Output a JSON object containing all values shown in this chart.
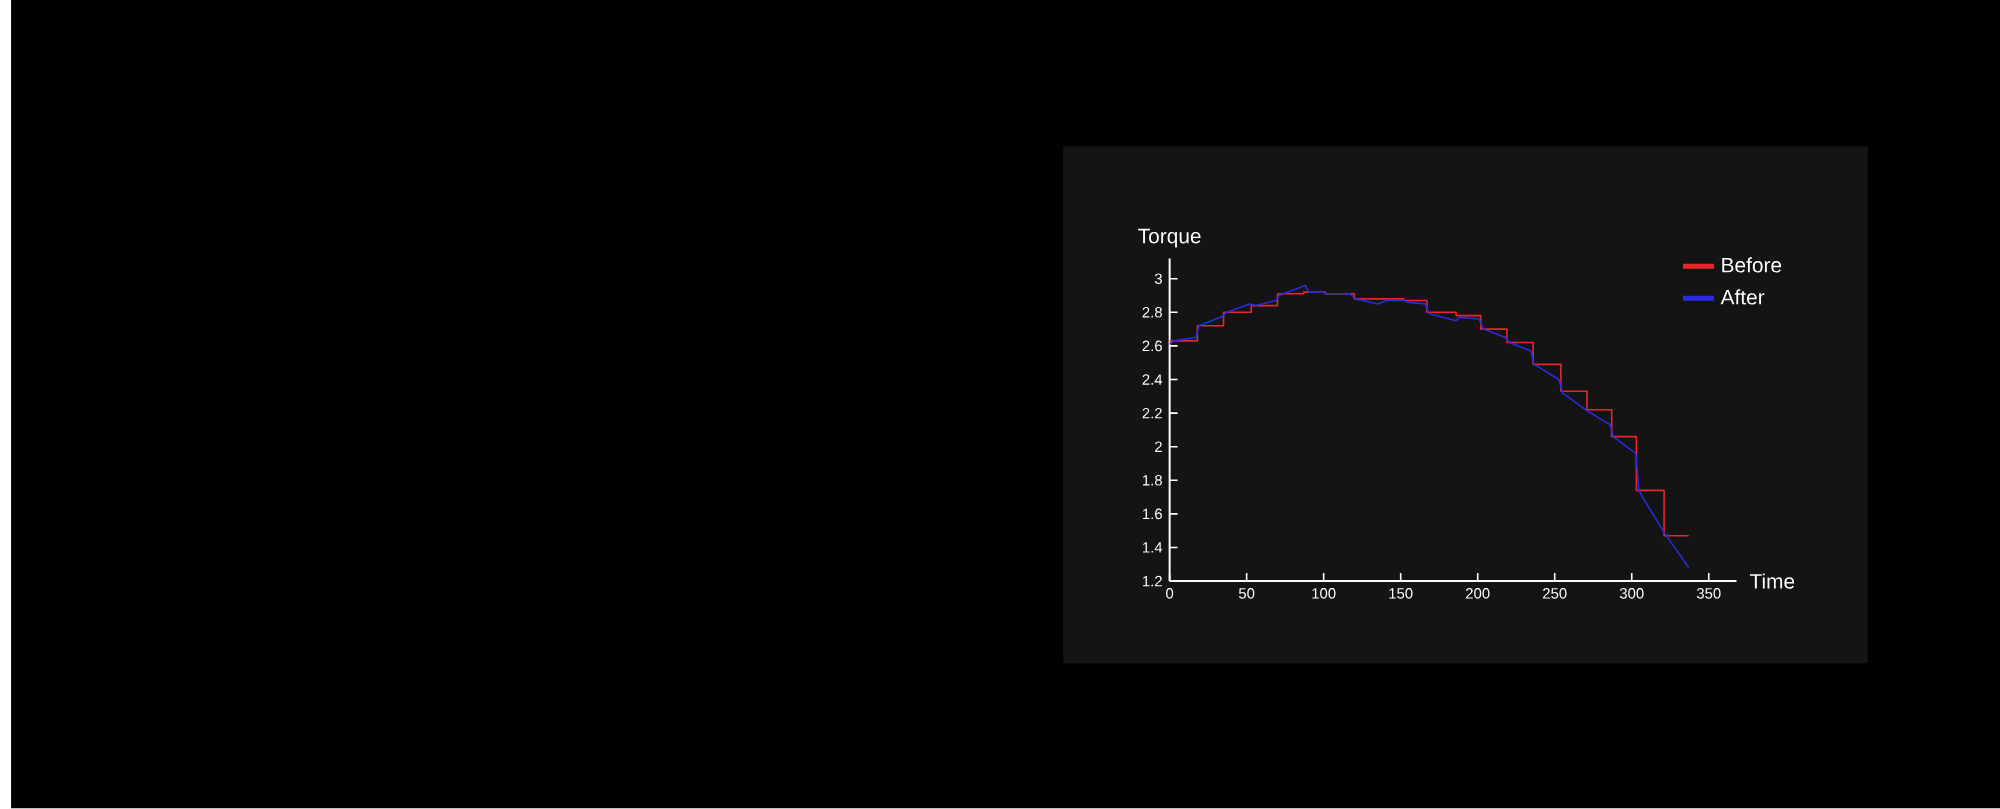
{
  "chart_data": {
    "type": "line",
    "xlabel": "Time",
    "ylabel": "Torque",
    "xlim": [
      0,
      368
    ],
    "ylim": [
      1.2,
      3.12
    ],
    "xticks": [
      0,
      50,
      100,
      150,
      200,
      250,
      300,
      350
    ],
    "yticks": [
      1.2,
      1.4,
      1.6,
      1.8,
      2,
      2.2,
      2.4,
      2.6,
      2.8,
      3
    ],
    "legend": "top right",
    "marker": "none",
    "line_style": "solid",
    "grid": false,
    "series": [
      {
        "name": "Before",
        "type": "step",
        "color": "#e8262a",
        "x": [
          0,
          18,
          35,
          53,
          70,
          87,
          101,
          120,
          152,
          167,
          186,
          202,
          219,
          236,
          254,
          271,
          287,
          303,
          321,
          337
        ],
        "values": [
          2.63,
          2.72,
          2.8,
          2.84,
          2.91,
          2.92,
          2.91,
          2.88,
          2.87,
          2.8,
          2.78,
          2.7,
          2.62,
          2.49,
          2.33,
          2.22,
          2.06,
          1.74,
          1.47,
          1.47
        ]
      },
      {
        "name": "After",
        "type": "line",
        "color": "#2a2ae0",
        "x": [
          0,
          3,
          17,
          19,
          33,
          37,
          52,
          56,
          69,
          71,
          88,
          90.5,
          100,
          102,
          117,
          121,
          135,
          141,
          153,
          154,
          166,
          168,
          169,
          186,
          188,
          201,
          203.6,
          218,
          220.5,
          234.5,
          236.6,
          252.8,
          255,
          270,
          286,
          288,
          302.6,
          304.7,
          307,
          321,
          337
        ],
        "values": [
          2.61,
          2.63,
          2.65,
          2.72,
          2.77,
          2.8,
          2.85,
          2.84,
          2.87,
          2.9,
          2.96,
          2.92,
          2.92,
          2.91,
          2.91,
          2.88,
          2.85,
          2.87,
          2.87,
          2.86,
          2.85,
          2.8,
          2.79,
          2.75,
          2.77,
          2.76,
          2.7,
          2.65,
          2.62,
          2.57,
          2.49,
          2.4,
          2.32,
          2.22,
          2.13,
          2.06,
          1.96,
          1.74,
          1.7,
          1.49,
          1.28
        ]
      }
    ]
  }
}
